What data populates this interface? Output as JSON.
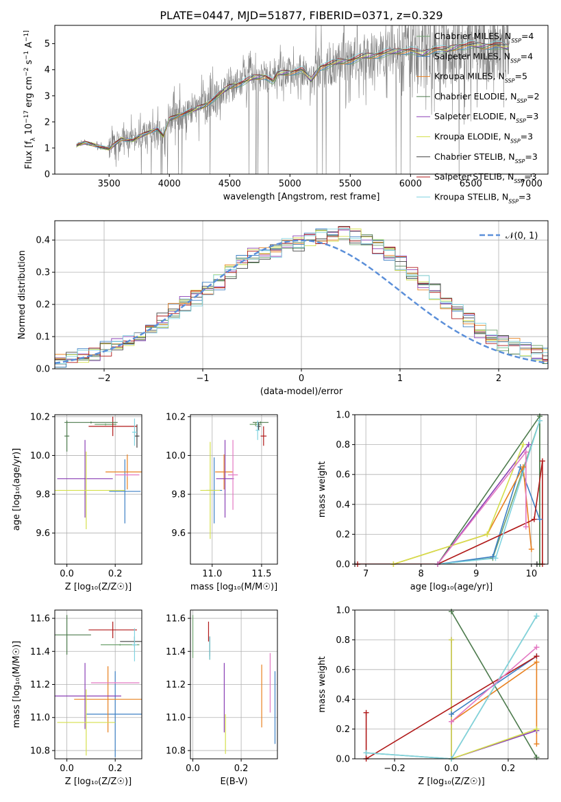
{
  "figure_title": "PLATE=0447, MJD=51877, FIBERID=0371, z=0.329",
  "colors": {
    "Chabrier MILES": "#6fa36f",
    "Salpeter MILES": "#3b7fc4",
    "Kroupa MILES": "#e8801f",
    "Chabrier ELODIE": "#4c7a4c",
    "Salpeter ELODIE": "#8a3fb5",
    "Kroupa ELODIE": "#d4df4a",
    "Chabrier STELIB": "#404040",
    "Salpeter STELIB": "#b01818",
    "Kroupa STELIB": "#7fd3e0",
    "data": "#7f7f7f",
    "gaussian": "#5b8fd9",
    "pink": "#e377c2"
  },
  "chart_data": [
    {
      "id": "spectrum",
      "type": "line",
      "xlabel": "wavelength [Angstrom, rest frame]",
      "ylabel_main": "Flux [f",
      "ylabel_rest": " 10",
      "ylabel_unit": " erg cm",
      "ylabel_tail": " s",
      "ylabel_end": " A",
      "ylabel_sub": "λ",
      "ylabel_sup1": "−17",
      "ylabel_sup2": "−2",
      "ylabel_sup3": "−1",
      "ylabel_sup4": "−1]",
      "xlim": [
        3050,
        7140
      ],
      "ylim": [
        0,
        5.7
      ],
      "xticks": [
        3500,
        4000,
        4500,
        5000,
        5500,
        6000,
        6500,
        7000
      ],
      "yticks": [
        0,
        1,
        2,
        3,
        4,
        5
      ],
      "legend_position": "top-right",
      "model_anchor_wavelength": [
        3230,
        3300,
        3400,
        3500,
        3600,
        3700,
        3800,
        3900,
        3950,
        4000,
        4100,
        4200,
        4300,
        4400,
        4500,
        4600,
        4700,
        4800,
        4860,
        4900,
        5000,
        5100,
        5175,
        5250,
        5400,
        5500,
        5600,
        5700,
        5800,
        5900,
        6000,
        6100,
        6200,
        6300,
        6400,
        6500,
        6600,
        6700,
        6800
      ],
      "model_anchor_flux": [
        1.1,
        1.2,
        1.1,
        0.95,
        1.35,
        1.3,
        1.55,
        1.75,
        1.45,
        2.1,
        2.3,
        2.45,
        2.65,
        3.0,
        3.35,
        3.5,
        3.7,
        3.75,
        3.55,
        3.85,
        3.9,
        4.0,
        3.6,
        4.1,
        4.3,
        4.35,
        4.5,
        4.55,
        4.65,
        4.7,
        4.75,
        4.6,
        4.8,
        4.75,
        4.9,
        4.95,
        4.9,
        4.95,
        4.85
      ],
      "series": [
        {
          "name": "Chabrier MILES",
          "nssp": "4"
        },
        {
          "name": "Salpeter MILES",
          "nssp": "4"
        },
        {
          "name": "Kroupa MILES",
          "nssp": "5"
        },
        {
          "name": "Chabrier ELODIE",
          "nssp": "2"
        },
        {
          "name": "Salpeter ELODIE",
          "nssp": "3"
        },
        {
          "name": "Kroupa ELODIE",
          "nssp": "3"
        },
        {
          "name": "Chabrier STELIB",
          "nssp": "3"
        },
        {
          "name": "Salpeter STELIB",
          "nssp": "3"
        },
        {
          "name": "Kroupa STELIB",
          "nssp": "3"
        }
      ],
      "legend_sub": "SSP"
    },
    {
      "id": "residuals",
      "type": "line",
      "xlabel": "(data-model)/error",
      "ylabel": "Normed distribution",
      "xlim": [
        -2.5,
        2.5
      ],
      "ylim": [
        0,
        0.46
      ],
      "xticks": [
        -2,
        -1,
        0,
        1,
        2
      ],
      "yticks": [
        0.0,
        0.1,
        0.2,
        0.3,
        0.4
      ],
      "bin_width": 0.1,
      "grid": true,
      "legend_label": "𝒩(0, 1)",
      "legend_position": "top-right",
      "histogram_center_y": [
        0.02,
        0.03,
        0.04,
        0.05,
        0.06,
        0.07,
        0.08,
        0.1,
        0.13,
        0.15,
        0.18,
        0.2,
        0.22,
        0.25,
        0.27,
        0.3,
        0.33,
        0.35,
        0.36,
        0.37,
        0.38,
        0.39,
        0.4,
        0.41,
        0.42,
        0.42,
        0.41,
        0.4,
        0.38,
        0.36,
        0.33,
        0.3,
        0.27,
        0.24,
        0.21,
        0.18,
        0.15,
        0.12,
        0.1,
        0.08,
        0.07,
        0.06,
        0.05,
        0.04
      ]
    },
    {
      "id": "age-vs-Z",
      "type": "scatter",
      "xlabel": "Z [log₁₀(Z/Z☉)]",
      "ylabel": "age  [log₁₀(age/yr)]",
      "xlim": [
        -0.05,
        0.31
      ],
      "ylim": [
        9.44,
        10.21
      ],
      "xticks": [
        0.0,
        0.2
      ],
      "yticks": [
        9.6,
        9.8,
        10.0,
        10.2
      ],
      "points": [
        {
          "s": "Chabrier MILES",
          "x": 0.16,
          "xe": 0.045,
          "y": 10.16,
          "ye": 0.005
        },
        {
          "s": "Salpeter MILES",
          "x": 0.24,
          "xe": 0.065,
          "y": 9.815,
          "ye": 0.165
        },
        {
          "s": "Kroupa MILES",
          "x": 0.25,
          "xe": 0.09,
          "y": 9.915,
          "ye": 0.09
        },
        {
          "s": "Chabrier ELODIE",
          "x": 0.0,
          "xe": 0.01,
          "y": 10.1,
          "ye": 0.08
        },
        {
          "s": "Salpeter ELODIE",
          "x": 0.075,
          "xe": 0.115,
          "y": 9.88,
          "ye": 0.2
        },
        {
          "s": "Kroupa ELODIE",
          "x": 0.08,
          "xe": 0.16,
          "y": 9.82,
          "ye": 0.2
        },
        {
          "s": "Chabrier STELIB",
          "x": 0.29,
          "xe": 0.01,
          "y": 10.1,
          "ye": 0.06
        },
        {
          "s": "Salpeter STELIB",
          "x": 0.19,
          "xe": 0.1,
          "y": 10.15,
          "ye": 0.05
        },
        {
          "s": "Kroupa STELIB",
          "x": 0.28,
          "xe": 0.01,
          "y": 10.12,
          "ye": 0.07
        },
        {
          "s": "pink",
          "x": 0.25,
          "xe": 0.05,
          "y": 9.9,
          "ye": 0.01
        },
        {
          "s": "Chabrier ELODIE",
          "x": 0.1,
          "xe": 0.11,
          "y": 10.17,
          "ye": 0.005
        }
      ]
    },
    {
      "id": "age-vs-mass",
      "type": "scatter",
      "xlabel": "mass [log₁₀(M/M☉)]",
      "ylabel": "",
      "xlim": [
        10.78,
        11.66
      ],
      "ylim": [
        9.44,
        10.21
      ],
      "xticks": [
        11.0,
        11.5
      ],
      "yticks": [
        9.6,
        9.8,
        10.0,
        10.2
      ],
      "points": [
        {
          "s": "Chabrier MILES",
          "x": 11.44,
          "xe": 0.06,
          "y": 10.16,
          "ye": 0.01
        },
        {
          "s": "Salpeter MILES",
          "x": 11.02,
          "xe": 0.08,
          "y": 9.82,
          "ye": 0.17
        },
        {
          "s": "Kroupa MILES",
          "x": 11.12,
          "xe": 0.09,
          "y": 9.915,
          "ye": 0.09
        },
        {
          "s": "Chabrier ELODIE",
          "x": 11.49,
          "xe": 0.08,
          "y": 10.17,
          "ye": 0.005
        },
        {
          "s": "Salpeter ELODIE",
          "x": 11.13,
          "xe": 0.09,
          "y": 9.88,
          "ye": 0.2
        },
        {
          "s": "Kroupa ELODIE",
          "x": 10.98,
          "xe": 0.1,
          "y": 9.82,
          "ye": 0.25
        },
        {
          "s": "Chabrier STELIB",
          "x": 11.47,
          "xe": 0.02,
          "y": 10.15,
          "ye": 0.02
        },
        {
          "s": "Salpeter STELIB",
          "x": 11.52,
          "xe": 0.03,
          "y": 10.1,
          "ye": 0.05
        },
        {
          "s": "Kroupa STELIB",
          "x": 11.46,
          "xe": 0.02,
          "y": 10.13,
          "ye": 0.05
        },
        {
          "s": "pink",
          "x": 11.21,
          "xe": 0.05,
          "y": 9.9,
          "ye": 0.18
        }
      ]
    },
    {
      "id": "weight-vs-age",
      "type": "line",
      "xlabel": "age  [log₁₀(age/yr)]",
      "ylabel": "mass weight",
      "xlim": [
        6.8,
        10.3
      ],
      "ylim": [
        0,
        1.0
      ],
      "xticks": [
        7,
        8,
        9,
        10
      ],
      "yticks": [
        0.0,
        0.2,
        0.4,
        0.6,
        0.8,
        1.0
      ],
      "series": [
        {
          "s": "Chabrier MILES",
          "x": [
            8.3,
            9.3,
            10.15,
            10.15
          ],
          "y": [
            0.0,
            0.04,
            0.96,
            0.0
          ]
        },
        {
          "s": "Salpeter MILES",
          "x": [
            8.3,
            9.3,
            9.8,
            10.15
          ],
          "y": [
            0.0,
            0.05,
            0.65,
            0.3
          ]
        },
        {
          "s": "Kroupa MILES",
          "x": [
            7.5,
            9.2,
            9.85,
            10.0
          ],
          "y": [
            0.0,
            0.2,
            0.65,
            0.1
          ]
        },
        {
          "s": "Chabrier ELODIE",
          "x": [
            8.3,
            10.15,
            10.15
          ],
          "y": [
            0.0,
            0.99,
            0.0
          ]
        },
        {
          "s": "Salpeter ELODIE",
          "x": [
            8.3,
            9.95
          ],
          "y": [
            0.0,
            0.8
          ]
        },
        {
          "s": "Kroupa ELODIE",
          "x": [
            7.5,
            9.2,
            9.85
          ],
          "y": [
            0.0,
            0.2,
            0.8
          ]
        },
        {
          "s": "Chabrier STELIB",
          "x": [
            6.8,
            10.1
          ],
          "y": [
            0.0,
            0.0
          ]
        },
        {
          "s": "Salpeter STELIB",
          "x": [
            6.85,
            8.3,
            10.05,
            10.2,
            10.2
          ],
          "y": [
            0.0,
            0.0,
            0.3,
            0.69,
            0.0
          ]
        },
        {
          "s": "Kroupa STELIB",
          "x": [
            8.3,
            9.35,
            10.15
          ],
          "y": [
            0.0,
            0.04,
            0.96
          ]
        },
        {
          "s": "pink",
          "x": [
            8.3,
            9.9,
            9.9
          ],
          "y": [
            0.0,
            0.75,
            0.25
          ]
        }
      ]
    },
    {
      "id": "mass-vs-Z",
      "type": "scatter",
      "xlabel": "Z [log₁₀(Z/Z☉)]",
      "ylabel": "mass [log₁₀(M/M☉)]",
      "xlim": [
        -0.05,
        0.31
      ],
      "ylim": [
        10.75,
        11.65
      ],
      "xticks": [
        0.0,
        0.2
      ],
      "yticks": [
        10.8,
        11.0,
        11.2,
        11.4,
        11.6
      ],
      "points": [
        {
          "s": "Chabrier MILES",
          "x": 0.22,
          "xe": 0.08,
          "y": 11.44,
          "ye": 0.005
        },
        {
          "s": "Salpeter MILES",
          "x": 0.2,
          "xe": 0.12,
          "y": 11.02,
          "ye": 0.26
        },
        {
          "s": "Kroupa MILES",
          "x": 0.17,
          "xe": 0.14,
          "y": 11.11,
          "ye": 0.2
        },
        {
          "s": "Chabrier ELODIE",
          "x": 0.0,
          "xe": 0.1,
          "y": 11.5,
          "ye": 0.12
        },
        {
          "s": "Salpeter ELODIE",
          "x": 0.075,
          "xe": 0.15,
          "y": 11.13,
          "ye": 0.2
        },
        {
          "s": "Kroupa ELODIE",
          "x": 0.08,
          "xe": 0.12,
          "y": 10.97,
          "ye": 0.2
        },
        {
          "s": "Chabrier STELIB",
          "x": 0.28,
          "xe": 0.06,
          "y": 11.46,
          "ye": 0.03
        },
        {
          "s": "Salpeter STELIB",
          "x": 0.19,
          "xe": 0.1,
          "y": 11.53,
          "ye": 0.05
        },
        {
          "s": "Kroupa STELIB",
          "x": 0.28,
          "xe": 0.01,
          "y": 11.44,
          "ye": 0.1
        },
        {
          "s": "pink",
          "x": 0.2,
          "xe": 0.1,
          "y": 11.21,
          "ye": 0.005
        }
      ]
    },
    {
      "id": "mass-vs-ebv",
      "type": "scatter",
      "xlabel": "E(B-V)",
      "ylabel": "",
      "xlim": [
        -0.01,
        0.35
      ],
      "ylim": [
        10.75,
        11.65
      ],
      "xticks": [
        0.0,
        0.2
      ],
      "yticks": [
        10.8,
        11.0,
        11.2,
        11.4,
        11.6
      ],
      "points": [
        {
          "s": "Chabrier MILES",
          "x": 0.0,
          "ye": 0.13,
          "y": 11.49
        },
        {
          "s": "Salpeter MILES",
          "x": 0.34,
          "ye": 0.22,
          "y": 11.06
        },
        {
          "s": "Kroupa MILES",
          "x": 0.285,
          "ye": 0.19,
          "y": 11.13
        },
        {
          "s": "Chabrier ELODIE",
          "x": 0.07,
          "ye": 0.07,
          "y": 11.42
        },
        {
          "s": "Salpeter ELODIE",
          "x": 0.13,
          "ye": 0.21,
          "y": 11.12
        },
        {
          "s": "Kroupa ELODIE",
          "x": 0.135,
          "ye": 0.12,
          "y": 10.9
        },
        {
          "s": "Chabrier STELIB",
          "x": 0.07,
          "ye": 0.06,
          "y": 11.43
        },
        {
          "s": "Salpeter STELIB",
          "x": 0.065,
          "ye": 0.06,
          "y": 11.52
        },
        {
          "s": "Kroupa STELIB",
          "x": 0.07,
          "ye": 0.07,
          "y": 11.42
        },
        {
          "s": "pink",
          "x": 0.32,
          "ye": 0.18,
          "y": 11.21
        }
      ]
    },
    {
      "id": "weight-vs-Z",
      "type": "line",
      "xlabel": "Z [log₁₀(Z/Z☉)]",
      "ylabel": "mass weight",
      "xlim": [
        -0.34,
        0.34
      ],
      "ylim": [
        0,
        1.0
      ],
      "xticks": [
        -0.2,
        0.0,
        0.2
      ],
      "yticks": [
        0.0,
        0.2,
        0.4,
        0.6,
        0.8,
        1.0
      ],
      "series": [
        {
          "s": "Chabrier MILES",
          "x": [
            -0.3,
            0.0,
            0.3
          ],
          "y": [
            0.04,
            0.0,
            0.96
          ]
        },
        {
          "s": "Salpeter MILES",
          "x": [
            0.0,
            0.3
          ],
          "y": [
            0.3,
            0.69
          ]
        },
        {
          "s": "Kroupa MILES",
          "x": [
            0.0,
            0.3,
            0.3
          ],
          "y": [
            0.25,
            0.65,
            0.1
          ]
        },
        {
          "s": "Chabrier ELODIE",
          "x": [
            0.0,
            0.3
          ],
          "y": [
            0.99,
            0.01
          ]
        },
        {
          "s": "Salpeter ELODIE",
          "x": [
            0.0,
            0.0,
            0.3
          ],
          "y": [
            0.8,
            0.0,
            0.19
          ]
        },
        {
          "s": "Kroupa ELODIE",
          "x": [
            0.0,
            0.0,
            0.3
          ],
          "y": [
            0.8,
            0.0,
            0.2
          ]
        },
        {
          "s": "Salpeter STELIB",
          "x": [
            -0.3,
            -0.3,
            0.3
          ],
          "y": [
            0.31,
            0.0,
            0.69
          ]
        },
        {
          "s": "Kroupa STELIB",
          "x": [
            -0.3,
            0.0,
            0.3
          ],
          "y": [
            0.04,
            0.0,
            0.96
          ]
        },
        {
          "s": "pink",
          "x": [
            0.0,
            0.3
          ],
          "y": [
            0.25,
            0.75
          ]
        }
      ]
    }
  ]
}
